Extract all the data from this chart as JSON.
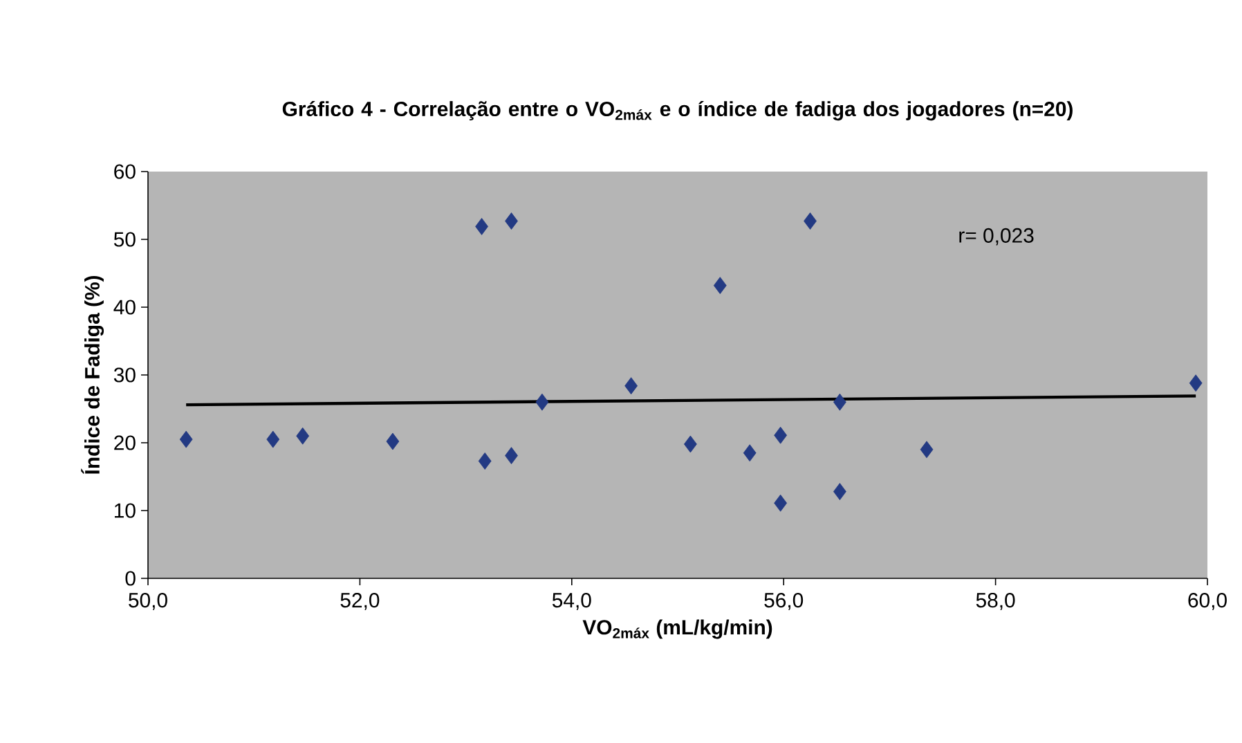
{
  "chart_data": {
    "type": "scatter",
    "title": "Gráfico 4 - Correlação entre o VO$_{2máx}$ e o índice de fadiga dos jogadores (n=20)",
    "xlabel": "VO$_{2máx}$ (mL/kg/min)",
    "ylabel": "Índice de Fadiga (%)",
    "xlim": [
      50,
      60
    ],
    "ylim": [
      0,
      60
    ],
    "xticks": [
      {
        "value": 50,
        "label": "50,0"
      },
      {
        "value": 52,
        "label": "52,0"
      },
      {
        "value": 54,
        "label": "54,0"
      },
      {
        "value": 56,
        "label": "56,0"
      },
      {
        "value": 58,
        "label": "58,0"
      },
      {
        "value": 60,
        "label": "60,0"
      }
    ],
    "yticks": [
      0,
      10,
      20,
      30,
      40,
      50,
      60
    ],
    "marker": "diamond",
    "annotations": [
      "r= 0,023"
    ],
    "series": [
      {
        "color": "#233a83",
        "x": [
          50.36,
          51.18,
          51.46,
          52.31,
          53.15,
          53.43,
          53.18,
          53.43,
          53.72,
          54.56,
          55.12,
          55.4,
          56.25,
          55.68,
          55.97,
          55.97,
          56.53,
          56.53,
          57.35,
          59.89
        ],
        "values": [
          20.5,
          20.5,
          21.0,
          20.2,
          51.9,
          52.7,
          17.3,
          18.1,
          26.0,
          28.4,
          19.8,
          43.2,
          52.7,
          18.5,
          21.1,
          11.1,
          26.0,
          12.8,
          19.0,
          28.8
        ]
      },
      {
        "type": "line",
        "color": "#000000",
        "marker": "none",
        "x": [
          50.36,
          59.89
        ],
        "values": [
          25.6,
          26.9
        ]
      }
    ]
  }
}
